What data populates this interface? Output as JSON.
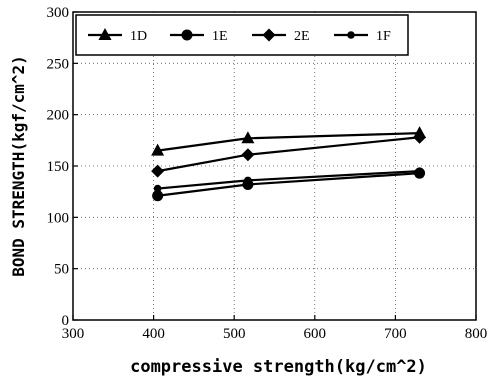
{
  "chart_data": {
    "type": "line",
    "xlabel": "compressive strength(kg/cm^2)",
    "ylabel": "BOND STRENGTH(kgf/cm^2)",
    "xlim": [
      300,
      800
    ],
    "ylim": [
      0,
      300
    ],
    "x_ticks": [
      300,
      400,
      500,
      600,
      700,
      800
    ],
    "y_ticks": [
      0,
      50,
      100,
      150,
      200,
      250,
      300
    ],
    "grid": "dotted",
    "legend_position": "top-left",
    "series": [
      {
        "name": "1D",
        "marker": "triangle",
        "x": [
          405,
          517,
          730
        ],
        "y": [
          165,
          177,
          182
        ]
      },
      {
        "name": "1E",
        "marker": "circle",
        "x": [
          405,
          517,
          730
        ],
        "y": [
          121,
          132,
          143
        ]
      },
      {
        "name": "2E",
        "marker": "diamond",
        "x": [
          405,
          517,
          730
        ],
        "y": [
          145,
          161,
          178
        ]
      },
      {
        "name": "1F",
        "marker": "small-circle",
        "x": [
          405,
          517,
          730
        ],
        "y": [
          128,
          136,
          145
        ]
      }
    ]
  }
}
